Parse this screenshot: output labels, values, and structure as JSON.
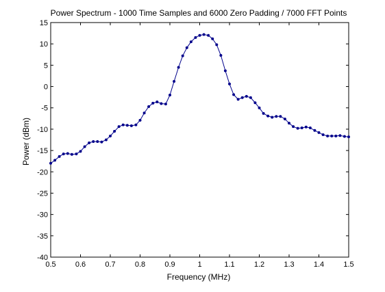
{
  "chart_data": {
    "type": "line",
    "title": "Power Spectrum - 1000 Time Samples and 6000 Zero Padding / 7000 FFT Points",
    "xlabel": "Frequency (MHz)",
    "ylabel": "Power (dBm)",
    "xlim": [
      0.5,
      1.5
    ],
    "ylim": [
      -40,
      15
    ],
    "xticks": [
      "0.5",
      "0.6",
      "0.7",
      "0.8",
      "0.9",
      "1",
      "1.1",
      "1.2",
      "1.3",
      "1.4",
      "1.5"
    ],
    "yticks": [
      "15",
      "10",
      "5",
      "0",
      "-5",
      "-10",
      "-15",
      "-20",
      "-25",
      "-30",
      "-35",
      "-40"
    ],
    "grid": false,
    "line_color": "#00008b",
    "marker": "point",
    "series": [
      {
        "x": [
          0.5,
          0.514,
          0.529,
          0.543,
          0.557,
          0.571,
          0.586,
          0.6,
          0.614,
          0.629,
          0.643,
          0.657,
          0.671,
          0.686,
          0.7,
          0.714,
          0.729,
          0.743,
          0.757,
          0.771,
          0.786,
          0.8,
          0.814,
          0.829,
          0.843,
          0.857,
          0.871,
          0.886,
          0.9,
          0.914,
          0.929,
          0.943,
          0.957,
          0.971,
          0.986,
          1.0,
          1.014,
          1.029,
          1.043,
          1.057,
          1.071,
          1.086,
          1.1,
          1.114,
          1.129,
          1.143,
          1.157,
          1.171,
          1.186,
          1.2,
          1.214,
          1.229,
          1.243,
          1.257,
          1.271,
          1.286,
          1.3,
          1.314,
          1.329,
          1.343,
          1.357,
          1.371,
          1.386,
          1.4,
          1.414,
          1.429,
          1.443,
          1.457,
          1.471,
          1.486,
          1.5
        ],
        "y": [
          -18.0,
          -17.3,
          -16.4,
          -15.8,
          -15.7,
          -15.9,
          -15.8,
          -15.2,
          -14.1,
          -13.2,
          -12.9,
          -12.9,
          -13.0,
          -12.5,
          -11.6,
          -10.5,
          -9.4,
          -9.0,
          -9.1,
          -9.2,
          -9.0,
          -7.9,
          -6.2,
          -4.7,
          -3.9,
          -3.6,
          -4.0,
          -4.1,
          -2.0,
          1.2,
          4.5,
          7.2,
          9.1,
          10.5,
          11.5,
          12.0,
          12.2,
          12.0,
          11.2,
          9.8,
          7.3,
          3.7,
          0.6,
          -1.9,
          -3.0,
          -2.6,
          -2.3,
          -2.6,
          -3.8,
          -5.0,
          -6.3,
          -6.9,
          -7.2,
          -7.0,
          -7.0,
          -7.6,
          -8.6,
          -9.4,
          -9.8,
          -9.7,
          -9.5,
          -9.7,
          -10.3,
          -10.8,
          -11.3,
          -11.6,
          -11.6,
          -11.6,
          -11.5,
          -11.7,
          -11.8
        ]
      }
    ]
  }
}
